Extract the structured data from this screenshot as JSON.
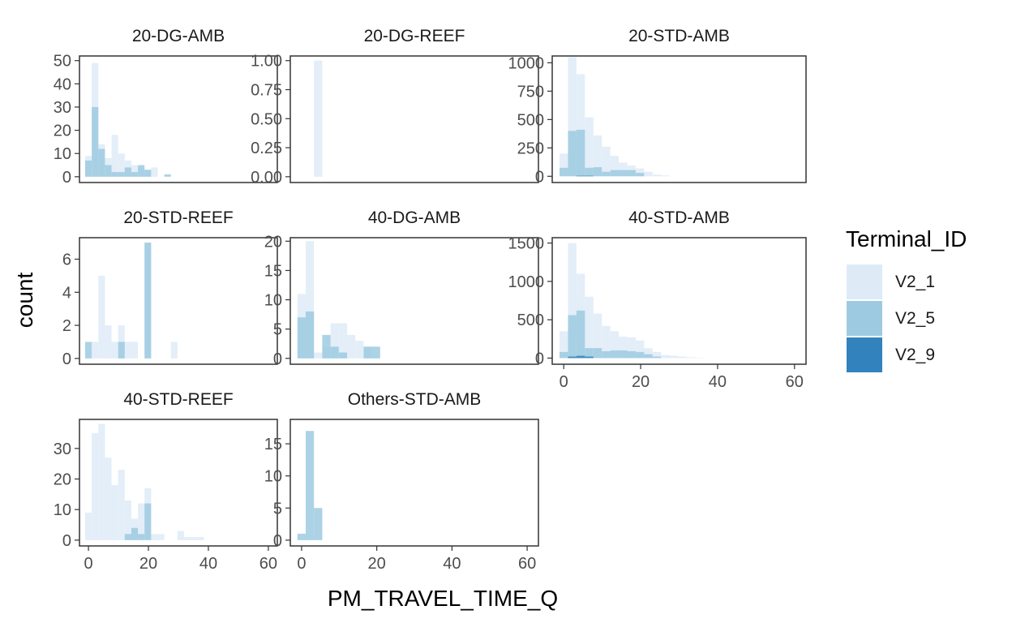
{
  "chart_data": {
    "type": "bar",
    "subtype": "faceted-histogram",
    "xlabel": "PM_TRAVEL_TIME_Q",
    "ylabel": "count",
    "x_range": [
      -3,
      63
    ],
    "x_ticks": [
      0,
      20,
      40,
      60
    ],
    "bin_width": 2.2,
    "legend": {
      "title": "Terminal_ID",
      "position": "right",
      "entries": [
        {
          "name": "V2_1",
          "color": "#deebf7"
        },
        {
          "name": "V2_5",
          "color": "#9ecae1"
        },
        {
          "name": "V2_9",
          "color": "#3182bd"
        }
      ]
    },
    "facets": [
      {
        "title": "20-DG-AMB",
        "y_range": [
          -2.5,
          52
        ],
        "y_ticks": [
          0,
          10,
          20,
          30,
          40,
          50
        ],
        "y_tick_labels": [
          "0",
          "10",
          "20",
          "30",
          "40",
          "50"
        ],
        "series": [
          {
            "name": "V2_1",
            "bins": [
              [
                -1.1,
                9
              ],
              [
                1.1,
                49
              ],
              [
                3.3,
                14
              ],
              [
                5.5,
                8
              ],
              [
                7.7,
                18
              ],
              [
                9.9,
                10
              ],
              [
                12.1,
                7
              ],
              [
                14.3,
                5
              ],
              [
                16.5,
                4
              ],
              [
                18.7,
                3
              ],
              [
                20.9,
                4
              ]
            ]
          },
          {
            "name": "V2_5",
            "bins": [
              [
                -1.1,
                7
              ],
              [
                1.1,
                30
              ],
              [
                3.3,
                12
              ],
              [
                5.5,
                5
              ],
              [
                7.7,
                2
              ],
              [
                9.9,
                2
              ],
              [
                12.1,
                4
              ],
              [
                14.3,
                2
              ],
              [
                16.5,
                5
              ],
              [
                18.7,
                3
              ],
              [
                25.3,
                1
              ]
            ]
          },
          {
            "name": "V2_9",
            "bins": []
          }
        ]
      },
      {
        "title": "20-DG-REEF",
        "y_range": [
          -0.05,
          1.04
        ],
        "y_ticks": [
          0,
          0.25,
          0.5,
          0.75,
          1
        ],
        "y_tick_labels": [
          "0.00",
          "0.25",
          "0.50",
          "0.75",
          "1.00"
        ],
        "series": [
          {
            "name": "V2_1",
            "bins": [
              [
                3.3,
                1
              ]
            ]
          },
          {
            "name": "V2_5",
            "bins": []
          },
          {
            "name": "V2_9",
            "bins": []
          }
        ]
      },
      {
        "title": "20-STD-AMB",
        "y_range": [
          -55,
          1060
        ],
        "y_ticks": [
          0,
          250,
          500,
          750,
          1000
        ],
        "y_tick_labels": [
          "0",
          "250",
          "500",
          "750",
          "1000"
        ],
        "series": [
          {
            "name": "V2_1",
            "bins": [
              [
                -1.1,
                200
              ],
              [
                1.1,
                1050
              ],
              [
                3.3,
                900
              ],
              [
                5.5,
                520
              ],
              [
                7.7,
                360
              ],
              [
                9.9,
                260
              ],
              [
                12.1,
                180
              ],
              [
                14.3,
                120
              ],
              [
                16.5,
                95
              ],
              [
                18.7,
                70
              ],
              [
                20.9,
                40
              ],
              [
                23.1,
                15
              ],
              [
                25.3,
                8
              ]
            ]
          },
          {
            "name": "V2_5",
            "bins": [
              [
                -1.1,
                75
              ],
              [
                1.1,
                400
              ],
              [
                3.3,
                410
              ],
              [
                5.5,
                75
              ],
              [
                7.7,
                80
              ],
              [
                9.9,
                40
              ],
              [
                12.1,
                55
              ],
              [
                14.3,
                55
              ],
              [
                16.5,
                55
              ],
              [
                18.7,
                30
              ]
            ]
          },
          {
            "name": "V2_9",
            "bins": [
              [
                3.3,
                5
              ],
              [
                5.5,
                5
              ]
            ]
          }
        ]
      },
      {
        "title": "20-STD-REEF",
        "y_range": [
          -0.35,
          7.3
        ],
        "y_ticks": [
          0,
          2,
          4,
          6
        ],
        "y_tick_labels": [
          "0",
          "2",
          "4",
          "6"
        ],
        "series": [
          {
            "name": "V2_1",
            "bins": [
              [
                1.1,
                1
              ],
              [
                3.3,
                5
              ],
              [
                5.5,
                2
              ],
              [
                7.7,
                1
              ],
              [
                9.9,
                2
              ],
              [
                12.1,
                1
              ],
              [
                14.3,
                1
              ],
              [
                18.7,
                7
              ],
              [
                27.5,
                1
              ]
            ]
          },
          {
            "name": "V2_5",
            "bins": [
              [
                -1.1,
                1
              ],
              [
                9.9,
                1
              ],
              [
                18.7,
                7
              ]
            ]
          },
          {
            "name": "V2_9",
            "bins": []
          }
        ]
      },
      {
        "title": "40-DG-AMB",
        "y_range": [
          -1.0,
          20.6
        ],
        "y_ticks": [
          0,
          5,
          10,
          15,
          20
        ],
        "y_tick_labels": [
          "0",
          "5",
          "10",
          "15",
          "20"
        ],
        "series": [
          {
            "name": "V2_1",
            "bins": [
              [
                -1.1,
                11
              ],
              [
                1.1,
                20
              ],
              [
                3.3,
                1
              ],
              [
                5.5,
                2
              ],
              [
                7.7,
                6
              ],
              [
                9.9,
                6
              ],
              [
                12.1,
                4
              ],
              [
                14.3,
                3
              ],
              [
                16.5,
                2
              ]
            ]
          },
          {
            "name": "V2_5",
            "bins": [
              [
                -1.1,
                7
              ],
              [
                1.1,
                8
              ],
              [
                5.5,
                4
              ],
              [
                7.7,
                2
              ],
              [
                9.9,
                1
              ],
              [
                16.5,
                2
              ],
              [
                18.7,
                2
              ]
            ]
          },
          {
            "name": "V2_9",
            "bins": []
          }
        ]
      },
      {
        "title": "40-STD-AMB",
        "y_range": [
          -80,
          1570
        ],
        "y_ticks": [
          0,
          500,
          1000,
          1500
        ],
        "y_tick_labels": [
          "0",
          "500",
          "1000",
          "1500"
        ],
        "series": [
          {
            "name": "V2_1",
            "bins": [
              [
                -1.1,
                350
              ],
              [
                1.1,
                1500
              ],
              [
                3.3,
                1100
              ],
              [
                5.5,
                800
              ],
              [
                7.7,
                580
              ],
              [
                9.9,
                420
              ],
              [
                12.1,
                350
              ],
              [
                14.3,
                280
              ],
              [
                16.5,
                270
              ],
              [
                18.7,
                230
              ],
              [
                20.9,
                130
              ],
              [
                23.1,
                80
              ],
              [
                25.3,
                40
              ],
              [
                27.5,
                30
              ],
              [
                29.7,
                20
              ],
              [
                31.9,
                10
              ],
              [
                34.1,
                5
              ]
            ]
          },
          {
            "name": "V2_5",
            "bins": [
              [
                -1.1,
                80
              ],
              [
                1.1,
                560
              ],
              [
                3.3,
                620
              ],
              [
                5.5,
                130
              ],
              [
                7.7,
                130
              ],
              [
                9.9,
                90
              ],
              [
                12.1,
                100
              ],
              [
                14.3,
                100
              ],
              [
                16.5,
                90
              ],
              [
                18.7,
                80
              ],
              [
                20.9,
                50
              ],
              [
                23.1,
                20
              ]
            ]
          },
          {
            "name": "V2_9",
            "bins": [
              [
                1.1,
                20
              ],
              [
                3.3,
                30
              ],
              [
                5.5,
                20
              ]
            ]
          }
        ]
      },
      {
        "title": "40-STD-REEF",
        "y_range": [
          -1.9,
          39.5
        ],
        "y_ticks": [
          0,
          10,
          20,
          30
        ],
        "y_tick_labels": [
          "0",
          "10",
          "20",
          "30"
        ],
        "series": [
          {
            "name": "V2_1",
            "bins": [
              [
                -1.1,
                9
              ],
              [
                1.1,
                35
              ],
              [
                3.3,
                38
              ],
              [
                5.5,
                27
              ],
              [
                7.7,
                18
              ],
              [
                9.9,
                23
              ],
              [
                12.1,
                13
              ],
              [
                14.3,
                7
              ],
              [
                16.5,
                12
              ],
              [
                18.7,
                17
              ],
              [
                20.9,
                2
              ],
              [
                23.1,
                2
              ],
              [
                29.7,
                3
              ],
              [
                31.9,
                1
              ],
              [
                34.1,
                1
              ],
              [
                36.3,
                1
              ]
            ]
          },
          {
            "name": "V2_5",
            "bins": [
              [
                12.1,
                2
              ],
              [
                14.3,
                4
              ],
              [
                16.5,
                2
              ],
              [
                18.7,
                12
              ]
            ]
          },
          {
            "name": "V2_9",
            "bins": []
          }
        ]
      },
      {
        "title": "Others-STD-AMB",
        "y_range": [
          -0.9,
          18.8
        ],
        "y_ticks": [
          0,
          5,
          10,
          15
        ],
        "y_tick_labels": [
          "0",
          "5",
          "10",
          "15"
        ],
        "series": [
          {
            "name": "V2_1",
            "bins": []
          },
          {
            "name": "V2_5",
            "bins": [
              [
                -1.1,
                1
              ],
              [
                1.1,
                17
              ],
              [
                3.3,
                5
              ]
            ]
          },
          {
            "name": "V2_9",
            "bins": []
          }
        ]
      }
    ]
  }
}
